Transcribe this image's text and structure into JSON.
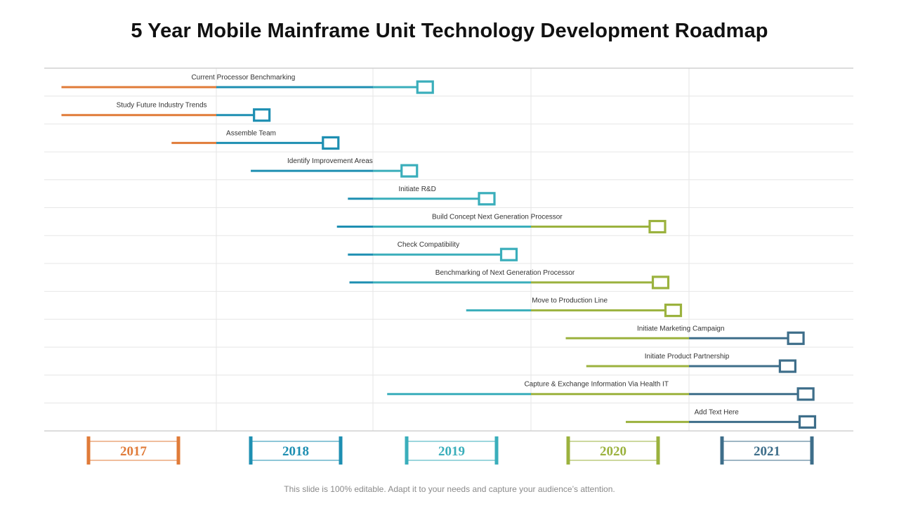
{
  "title": "5 Year Mobile Mainframe Unit Technology Development Roadmap",
  "footer": "This slide is 100% editable. Adapt it to your needs and capture your audience’s attention.",
  "colors": {
    "2017": "#e07b39",
    "2018": "#1e8fb2",
    "2019": "#3aaebb",
    "2020": "#9bb23e",
    "2021": "#3e6e8a",
    "grid": "#e6e6e6",
    "axis": "#c8c8c8"
  },
  "chart_data": {
    "type": "gantt",
    "years": [
      "2017",
      "2018",
      "2019",
      "2020",
      "2021"
    ],
    "tasks": [
      {
        "label": "Current Processor Benchmarking",
        "start": 2017.1,
        "end": 2019.33
      },
      {
        "label": "Study Future Industry Trends",
        "start": 2017.1,
        "end": 2018.29
      },
      {
        "label": "Assemble Team",
        "start": 2017.74,
        "end": 2018.73
      },
      {
        "label": "Identify Improvement Areas",
        "start": 2018.22,
        "end": 2019.23
      },
      {
        "label": "Initiate R&D",
        "start": 2018.84,
        "end": 2019.72
      },
      {
        "label": "Build Concept Next Generation Processor",
        "start": 2018.77,
        "end": 2020.8
      },
      {
        "label": "Check Compatibility",
        "start": 2018.84,
        "end": 2019.86
      },
      {
        "label": "Benchmarking of Next Generation Processor",
        "start": 2018.85,
        "end": 2020.82
      },
      {
        "label": "Move to Production Line",
        "start": 2019.59,
        "end": 2020.9
      },
      {
        "label": "Initiate Marketing Campaign",
        "start": 2020.22,
        "end": 2021.65
      },
      {
        "label": "Initiate Product Partnership",
        "start": 2020.35,
        "end": 2021.6
      },
      {
        "label": "Capture & Exchange Information Via Health IT",
        "start": 2019.09,
        "end": 2021.71
      },
      {
        "label": "Add Text Here",
        "start": 2020.6,
        "end": 2021.72
      }
    ]
  }
}
